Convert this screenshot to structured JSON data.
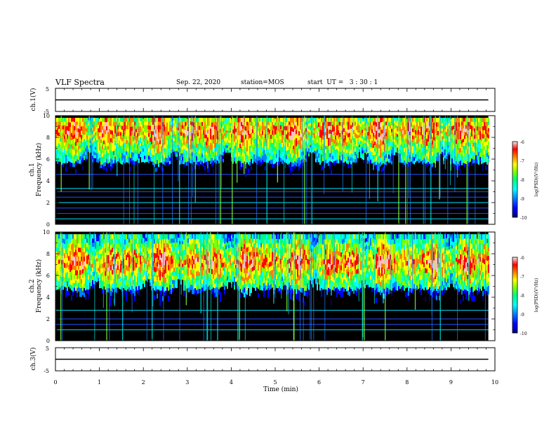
{
  "header": {
    "title": "VLF Spectra",
    "date": "Sep. 22, 2020",
    "station": "station=MOS",
    "start": "start  UT =   3 : 30 : 1"
  },
  "colors": {
    "colormap": [
      "#000080",
      "#0000ff",
      "#0080ff",
      "#00ffff",
      "#00ff80",
      "#80ff00",
      "#ffff00",
      "#ff8000",
      "#ff0000",
      "#ffc0c0",
      "#ffffff"
    ],
    "background": "#000000",
    "axis": "#000000"
  },
  "chart_data": [
    {
      "type": "line",
      "panel": "ch1-waveform",
      "ylabel": "ch.1(V)",
      "ylim": [
        -5,
        5
      ],
      "yticks": [
        "5",
        "-5"
      ],
      "xlim": [
        0,
        10
      ],
      "series": [
        {
          "x": [
            0,
            9.85
          ],
          "y": [
            0,
            0
          ]
        }
      ]
    },
    {
      "type": "heatmap",
      "panel": "ch1-spectrogram",
      "ylabel": [
        "ch.1",
        "Frequency (kHz)"
      ],
      "ylim": [
        0,
        10
      ],
      "yticks": [
        "0",
        "2",
        "4",
        "6",
        "8",
        "10"
      ],
      "xlim": [
        0,
        10
      ],
      "data_xmax": 9.85,
      "band_center_khz": 8.4,
      "band_lower_edge_khz": 5.5,
      "tone_lines_khz": [
        0.5,
        1.0,
        1.5,
        2.0,
        2.5,
        3.0,
        3.3,
        4.6
      ],
      "colorbar": {
        "label": "log(PSD)(V²/Hz)",
        "range": [
          -10,
          -6
        ],
        "ticks": [
          "-6",
          "-7",
          "-8",
          "-9",
          "-10"
        ]
      }
    },
    {
      "type": "heatmap",
      "panel": "ch2-spectrogram",
      "ylabel": [
        "ch.2",
        "Frequency (kHz)"
      ],
      "ylim": [
        0,
        10
      ],
      "yticks": [
        "0",
        "2",
        "4",
        "6",
        "8",
        "10"
      ],
      "xlim": [
        0,
        10
      ],
      "data_xmax": 9.85,
      "band_center_khz": 7.0,
      "band_lower_edge_khz": 4.6,
      "tone_lines_khz": [
        1.0,
        1.5,
        2.0,
        2.8
      ],
      "colorbar": {
        "label": "log(PSD)(V²/Hz)",
        "range": [
          -10,
          -6
        ],
        "ticks": [
          "-6",
          "-7",
          "-8",
          "-9",
          "-10"
        ]
      }
    },
    {
      "type": "line",
      "panel": "ch3-waveform",
      "ylabel": "ch.3(V)",
      "ylim": [
        -5,
        5
      ],
      "yticks": [
        "5",
        "-5"
      ],
      "xlim": [
        0,
        10
      ],
      "xlabel": "Time (min)",
      "xticks": [
        "0",
        "1",
        "2",
        "3",
        "4",
        "5",
        "6",
        "7",
        "8",
        "9",
        "10"
      ],
      "series": [
        {
          "x": [
            0,
            9.85
          ],
          "y": [
            0,
            0
          ]
        }
      ]
    }
  ]
}
